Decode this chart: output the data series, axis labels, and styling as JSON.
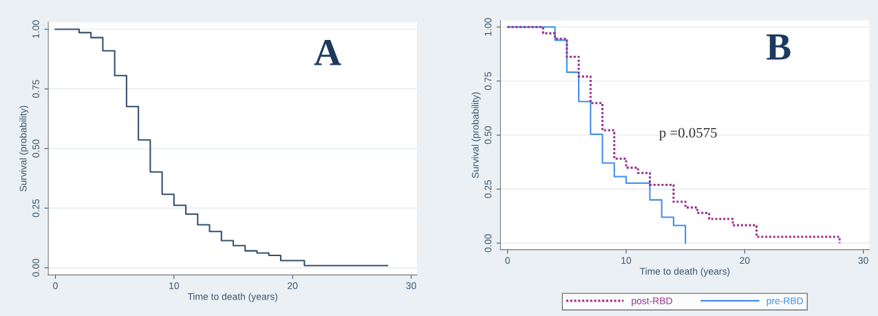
{
  "chart_data": [
    {
      "type": "step",
      "xlabel": "Time to death (years)",
      "ylabel": "Survival (probability)",
      "annotations": [
        "A"
      ],
      "xlim": [
        -0.6,
        30.5
      ],
      "xticks": [
        0,
        10,
        20,
        30
      ],
      "ylim": [
        -0.03,
        1.03
      ],
      "yticks": [
        {
          "value": 0,
          "label": "0.00"
        },
        {
          "value": 0.25,
          "label": "0.25"
        },
        {
          "value": 0.5,
          "label": "0.50"
        },
        {
          "value": 0.75,
          "label": "0.75"
        },
        {
          "value": 1,
          "label": "1.00"
        }
      ],
      "grid": "y",
      "legend": false,
      "line_style": "solid",
      "series": [
        {
          "color": "#34506e",
          "x": [
            0,
            2,
            3,
            4,
            5,
            6,
            7,
            8,
            9,
            10,
            11,
            12,
            13,
            14,
            15,
            16,
            17,
            18,
            19,
            21,
            28
          ],
          "values": [
            1.0,
            0.986,
            0.965,
            0.91,
            0.806,
            0.676,
            0.536,
            0.402,
            0.308,
            0.262,
            0.225,
            0.18,
            0.152,
            0.114,
            0.093,
            0.071,
            0.062,
            0.052,
            0.03,
            0.009,
            0.009
          ]
        }
      ]
    },
    {
      "type": "step",
      "xlabel": "Time to death (years)",
      "ylabel": "Survival (probability)",
      "annotations": [
        "B",
        "p =0.0575"
      ],
      "xlim": [
        -0.6,
        30.5
      ],
      "xticks": [
        0,
        10,
        20,
        30
      ],
      "ylim": [
        -0.03,
        1.03
      ],
      "yticks": [
        {
          "value": 0,
          "label": "0.00"
        },
        {
          "value": 0.25,
          "label": "0.25"
        },
        {
          "value": 0.5,
          "label": "0.50"
        },
        {
          "value": 0.75,
          "label": "0.75"
        },
        {
          "value": 1,
          "label": "1.00"
        }
      ],
      "grid": "y",
      "legend": "bottom",
      "series": [
        {
          "name": "post-RBD",
          "color": "#9b2f8e",
          "line_style": "dotted",
          "x": [
            0,
            3,
            4,
            5,
            6,
            7,
            8,
            9,
            10,
            11,
            12,
            14,
            15,
            16,
            17,
            19,
            21,
            28
          ],
          "values": [
            1.0,
            0.971,
            0.946,
            0.862,
            0.771,
            0.648,
            0.522,
            0.391,
            0.349,
            0.325,
            0.27,
            0.192,
            0.165,
            0.14,
            0.112,
            0.083,
            0.029,
            0.0
          ]
        },
        {
          "name": "pre-RBD",
          "color": "#3d8ee8",
          "line_style": "solid",
          "x": [
            0,
            4,
            5,
            6,
            7,
            8,
            9,
            10,
            12,
            13,
            14,
            15
          ],
          "values": [
            1.0,
            0.939,
            0.791,
            0.655,
            0.504,
            0.371,
            0.308,
            0.278,
            0.2,
            0.12,
            0.082,
            0.0
          ]
        }
      ]
    }
  ]
}
